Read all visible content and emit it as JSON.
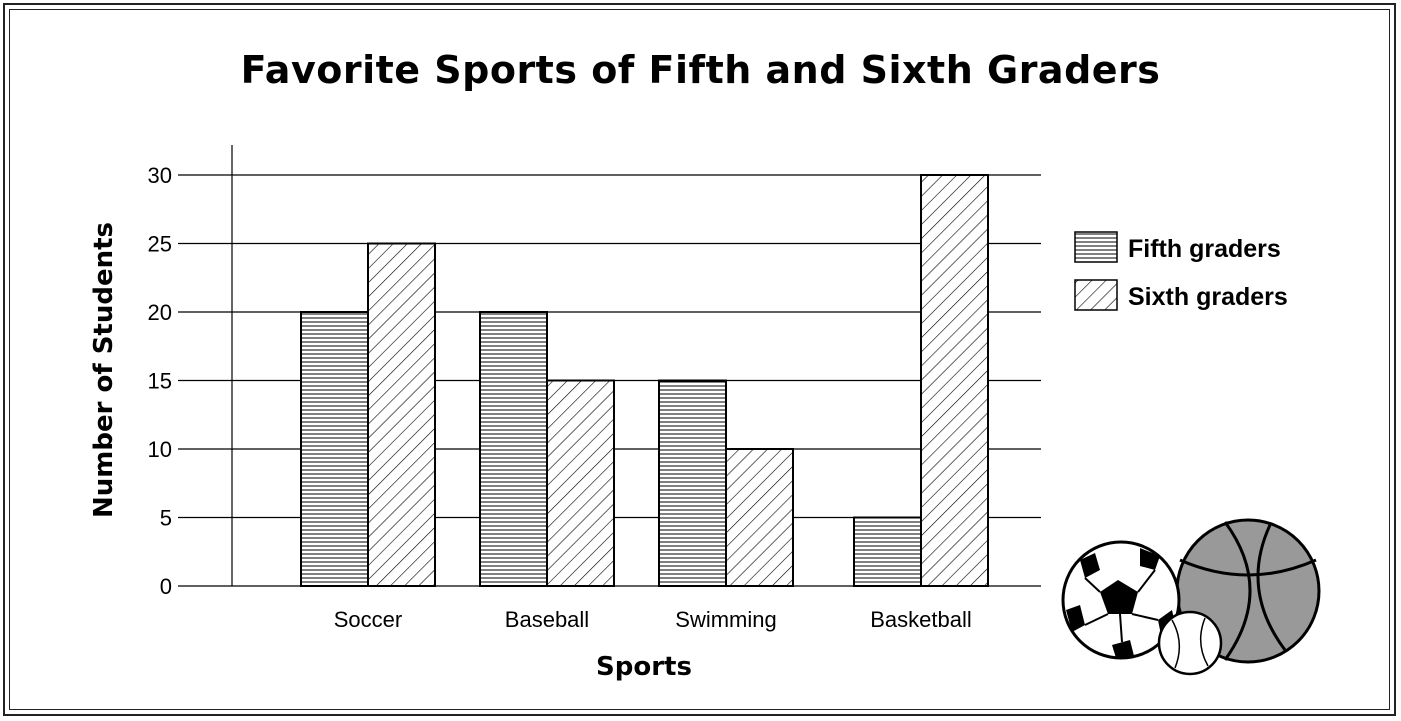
{
  "chart_data": {
    "type": "bar",
    "title": "Favorite Sports of Fifth and Sixth Graders",
    "xlabel": "Sports",
    "ylabel": "Number of Students",
    "categories": [
      "Soccer",
      "Baseball",
      "Swimming",
      "Basketball"
    ],
    "series": [
      {
        "name": "Fifth graders",
        "values": [
          20,
          20,
          15,
          5
        ],
        "pattern": "horizontal-lines"
      },
      {
        "name": "Sixth graders",
        "values": [
          25,
          15,
          10,
          30
        ],
        "pattern": "diagonal-lines"
      }
    ],
    "ylim": [
      0,
      30
    ],
    "yticks": [
      0,
      5,
      10,
      15,
      20,
      25,
      30
    ],
    "grid": true,
    "legend_position": "right",
    "decoration": "sports-balls-icon"
  }
}
